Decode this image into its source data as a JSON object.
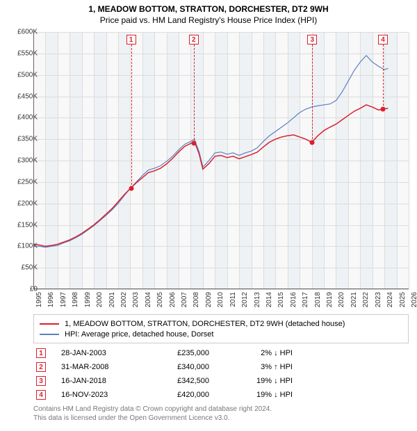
{
  "title_line1": "1, MEADOW BOTTOM, STRATTON, DORCHESTER, DT2 9WH",
  "title_line2": "Price paid vs. HM Land Registry's House Price Index (HPI)",
  "chart": {
    "type": "line",
    "background_color": "#f8f8f8",
    "grid_color": "#dcdcdc",
    "band_color": "#dde7f0",
    "ylim": [
      0,
      600000
    ],
    "ytick_step": 50000,
    "yticks_labels": [
      "£0",
      "£50K",
      "£100K",
      "£150K",
      "£200K",
      "£250K",
      "£300K",
      "£350K",
      "£400K",
      "£450K",
      "£500K",
      "£550K",
      "£600K"
    ],
    "xlim": [
      1995,
      2026
    ],
    "xticks": [
      1995,
      1996,
      1997,
      1998,
      1999,
      2000,
      2001,
      2002,
      2003,
      2004,
      2005,
      2006,
      2007,
      2008,
      2009,
      2010,
      2011,
      2012,
      2013,
      2014,
      2015,
      2016,
      2017,
      2018,
      2019,
      2020,
      2021,
      2022,
      2023,
      2024,
      2025,
      2026
    ],
    "title_fontsize": 12,
    "label_fontsize": 10,
    "series": {
      "hpi": {
        "color": "#5a7fbf",
        "width": 1.2,
        "points": [
          [
            1995,
            100000
          ],
          [
            1995.5,
            100000
          ],
          [
            1996,
            98000
          ],
          [
            1996.5,
            100000
          ],
          [
            1997,
            102000
          ],
          [
            1997.5,
            108000
          ],
          [
            1998,
            113000
          ],
          [
            1998.5,
            120000
          ],
          [
            1999,
            128000
          ],
          [
            1999.5,
            138000
          ],
          [
            2000,
            148000
          ],
          [
            2000.5,
            160000
          ],
          [
            2001,
            172000
          ],
          [
            2001.5,
            185000
          ],
          [
            2002,
            200000
          ],
          [
            2002.5,
            218000
          ],
          [
            2003,
            235000
          ],
          [
            2003.5,
            250000
          ],
          [
            2004,
            265000
          ],
          [
            2004.5,
            278000
          ],
          [
            2005,
            282000
          ],
          [
            2005.5,
            288000
          ],
          [
            2006,
            298000
          ],
          [
            2006.5,
            310000
          ],
          [
            2007,
            325000
          ],
          [
            2007.5,
            338000
          ],
          [
            2008,
            345000
          ],
          [
            2008.3,
            350000
          ],
          [
            2008.7,
            320000
          ],
          [
            2009,
            285000
          ],
          [
            2009.5,
            300000
          ],
          [
            2010,
            318000
          ],
          [
            2010.5,
            320000
          ],
          [
            2011,
            315000
          ],
          [
            2011.5,
            318000
          ],
          [
            2012,
            312000
          ],
          [
            2012.5,
            318000
          ],
          [
            2013,
            322000
          ],
          [
            2013.5,
            330000
          ],
          [
            2014,
            345000
          ],
          [
            2014.5,
            358000
          ],
          [
            2015,
            368000
          ],
          [
            2015.5,
            378000
          ],
          [
            2016,
            388000
          ],
          [
            2016.5,
            400000
          ],
          [
            2017,
            412000
          ],
          [
            2017.5,
            420000
          ],
          [
            2018,
            425000
          ],
          [
            2018.5,
            428000
          ],
          [
            2019,
            430000
          ],
          [
            2019.5,
            432000
          ],
          [
            2020,
            440000
          ],
          [
            2020.5,
            460000
          ],
          [
            2021,
            485000
          ],
          [
            2021.5,
            510000
          ],
          [
            2022,
            530000
          ],
          [
            2022.5,
            545000
          ],
          [
            2023,
            530000
          ],
          [
            2023.5,
            520000
          ],
          [
            2024,
            512000
          ],
          [
            2024.3,
            515000
          ]
        ]
      },
      "price_paid": {
        "color": "#d9202e",
        "width": 1.5,
        "points": [
          [
            1995,
            105000
          ],
          [
            1995.5,
            103000
          ],
          [
            1996,
            100000
          ],
          [
            1996.5,
            102000
          ],
          [
            1997,
            105000
          ],
          [
            1997.5,
            110000
          ],
          [
            1998,
            115000
          ],
          [
            1998.5,
            122000
          ],
          [
            1999,
            130000
          ],
          [
            1999.5,
            140000
          ],
          [
            2000,
            150000
          ],
          [
            2000.5,
            162000
          ],
          [
            2001,
            175000
          ],
          [
            2001.5,
            188000
          ],
          [
            2002,
            204000
          ],
          [
            2002.5,
            220000
          ],
          [
            2003,
            235000
          ],
          [
            2003.5,
            248000
          ],
          [
            2004,
            260000
          ],
          [
            2004.5,
            272000
          ],
          [
            2005,
            276000
          ],
          [
            2005.5,
            282000
          ],
          [
            2006,
            292000
          ],
          [
            2006.5,
            305000
          ],
          [
            2007,
            320000
          ],
          [
            2007.5,
            333000
          ],
          [
            2008,
            340000
          ],
          [
            2008.3,
            345000
          ],
          [
            2008.7,
            315000
          ],
          [
            2009,
            280000
          ],
          [
            2009.5,
            293000
          ],
          [
            2010,
            310000
          ],
          [
            2010.5,
            312000
          ],
          [
            2011,
            307000
          ],
          [
            2011.5,
            310000
          ],
          [
            2012,
            304000
          ],
          [
            2012.5,
            309000
          ],
          [
            2013,
            314000
          ],
          [
            2013.5,
            320000
          ],
          [
            2014,
            332000
          ],
          [
            2014.5,
            343000
          ],
          [
            2015,
            350000
          ],
          [
            2015.5,
            355000
          ],
          [
            2016,
            358000
          ],
          [
            2016.5,
            360000
          ],
          [
            2017,
            355000
          ],
          [
            2017.5,
            350000
          ],
          [
            2018,
            342500
          ],
          [
            2018.5,
            358000
          ],
          [
            2019,
            370000
          ],
          [
            2019.5,
            378000
          ],
          [
            2020,
            385000
          ],
          [
            2020.5,
            395000
          ],
          [
            2021,
            405000
          ],
          [
            2021.5,
            415000
          ],
          [
            2022,
            422000
          ],
          [
            2022.5,
            430000
          ],
          [
            2023,
            425000
          ],
          [
            2023.5,
            418000
          ],
          [
            2023.88,
            420000
          ],
          [
            2024.3,
            422000
          ]
        ]
      }
    },
    "markers": [
      {
        "n": "1",
        "year": 2003.07,
        "value": 235000,
        "color": "#d9202e"
      },
      {
        "n": "2",
        "year": 2008.25,
        "value": 340000,
        "color": "#d9202e"
      },
      {
        "n": "3",
        "year": 2018.04,
        "value": 342500,
        "color": "#d9202e"
      },
      {
        "n": "4",
        "year": 2023.88,
        "value": 420000,
        "color": "#d9202e"
      }
    ]
  },
  "legend": {
    "items": [
      {
        "color": "#d9202e",
        "label": "1, MEADOW BOTTOM, STRATTON, DORCHESTER, DT2 9WH (detached house)"
      },
      {
        "color": "#5a7fbf",
        "label": "HPI: Average price, detached house, Dorset"
      }
    ]
  },
  "sales": [
    {
      "n": "1",
      "date": "28-JAN-2003",
      "price": "£235,000",
      "diff": "2% ↓ HPI",
      "color": "#d9202e"
    },
    {
      "n": "2",
      "date": "31-MAR-2008",
      "price": "£340,000",
      "diff": "3% ↑ HPI",
      "color": "#d9202e"
    },
    {
      "n": "3",
      "date": "16-JAN-2018",
      "price": "£342,500",
      "diff": "19% ↓ HPI",
      "color": "#d9202e"
    },
    {
      "n": "4",
      "date": "16-NOV-2023",
      "price": "£420,000",
      "diff": "19% ↓ HPI",
      "color": "#d9202e"
    }
  ],
  "footer_line1": "Contains HM Land Registry data © Crown copyright and database right 2024.",
  "footer_line2": "This data is licensed under the Open Government Licence v3.0."
}
